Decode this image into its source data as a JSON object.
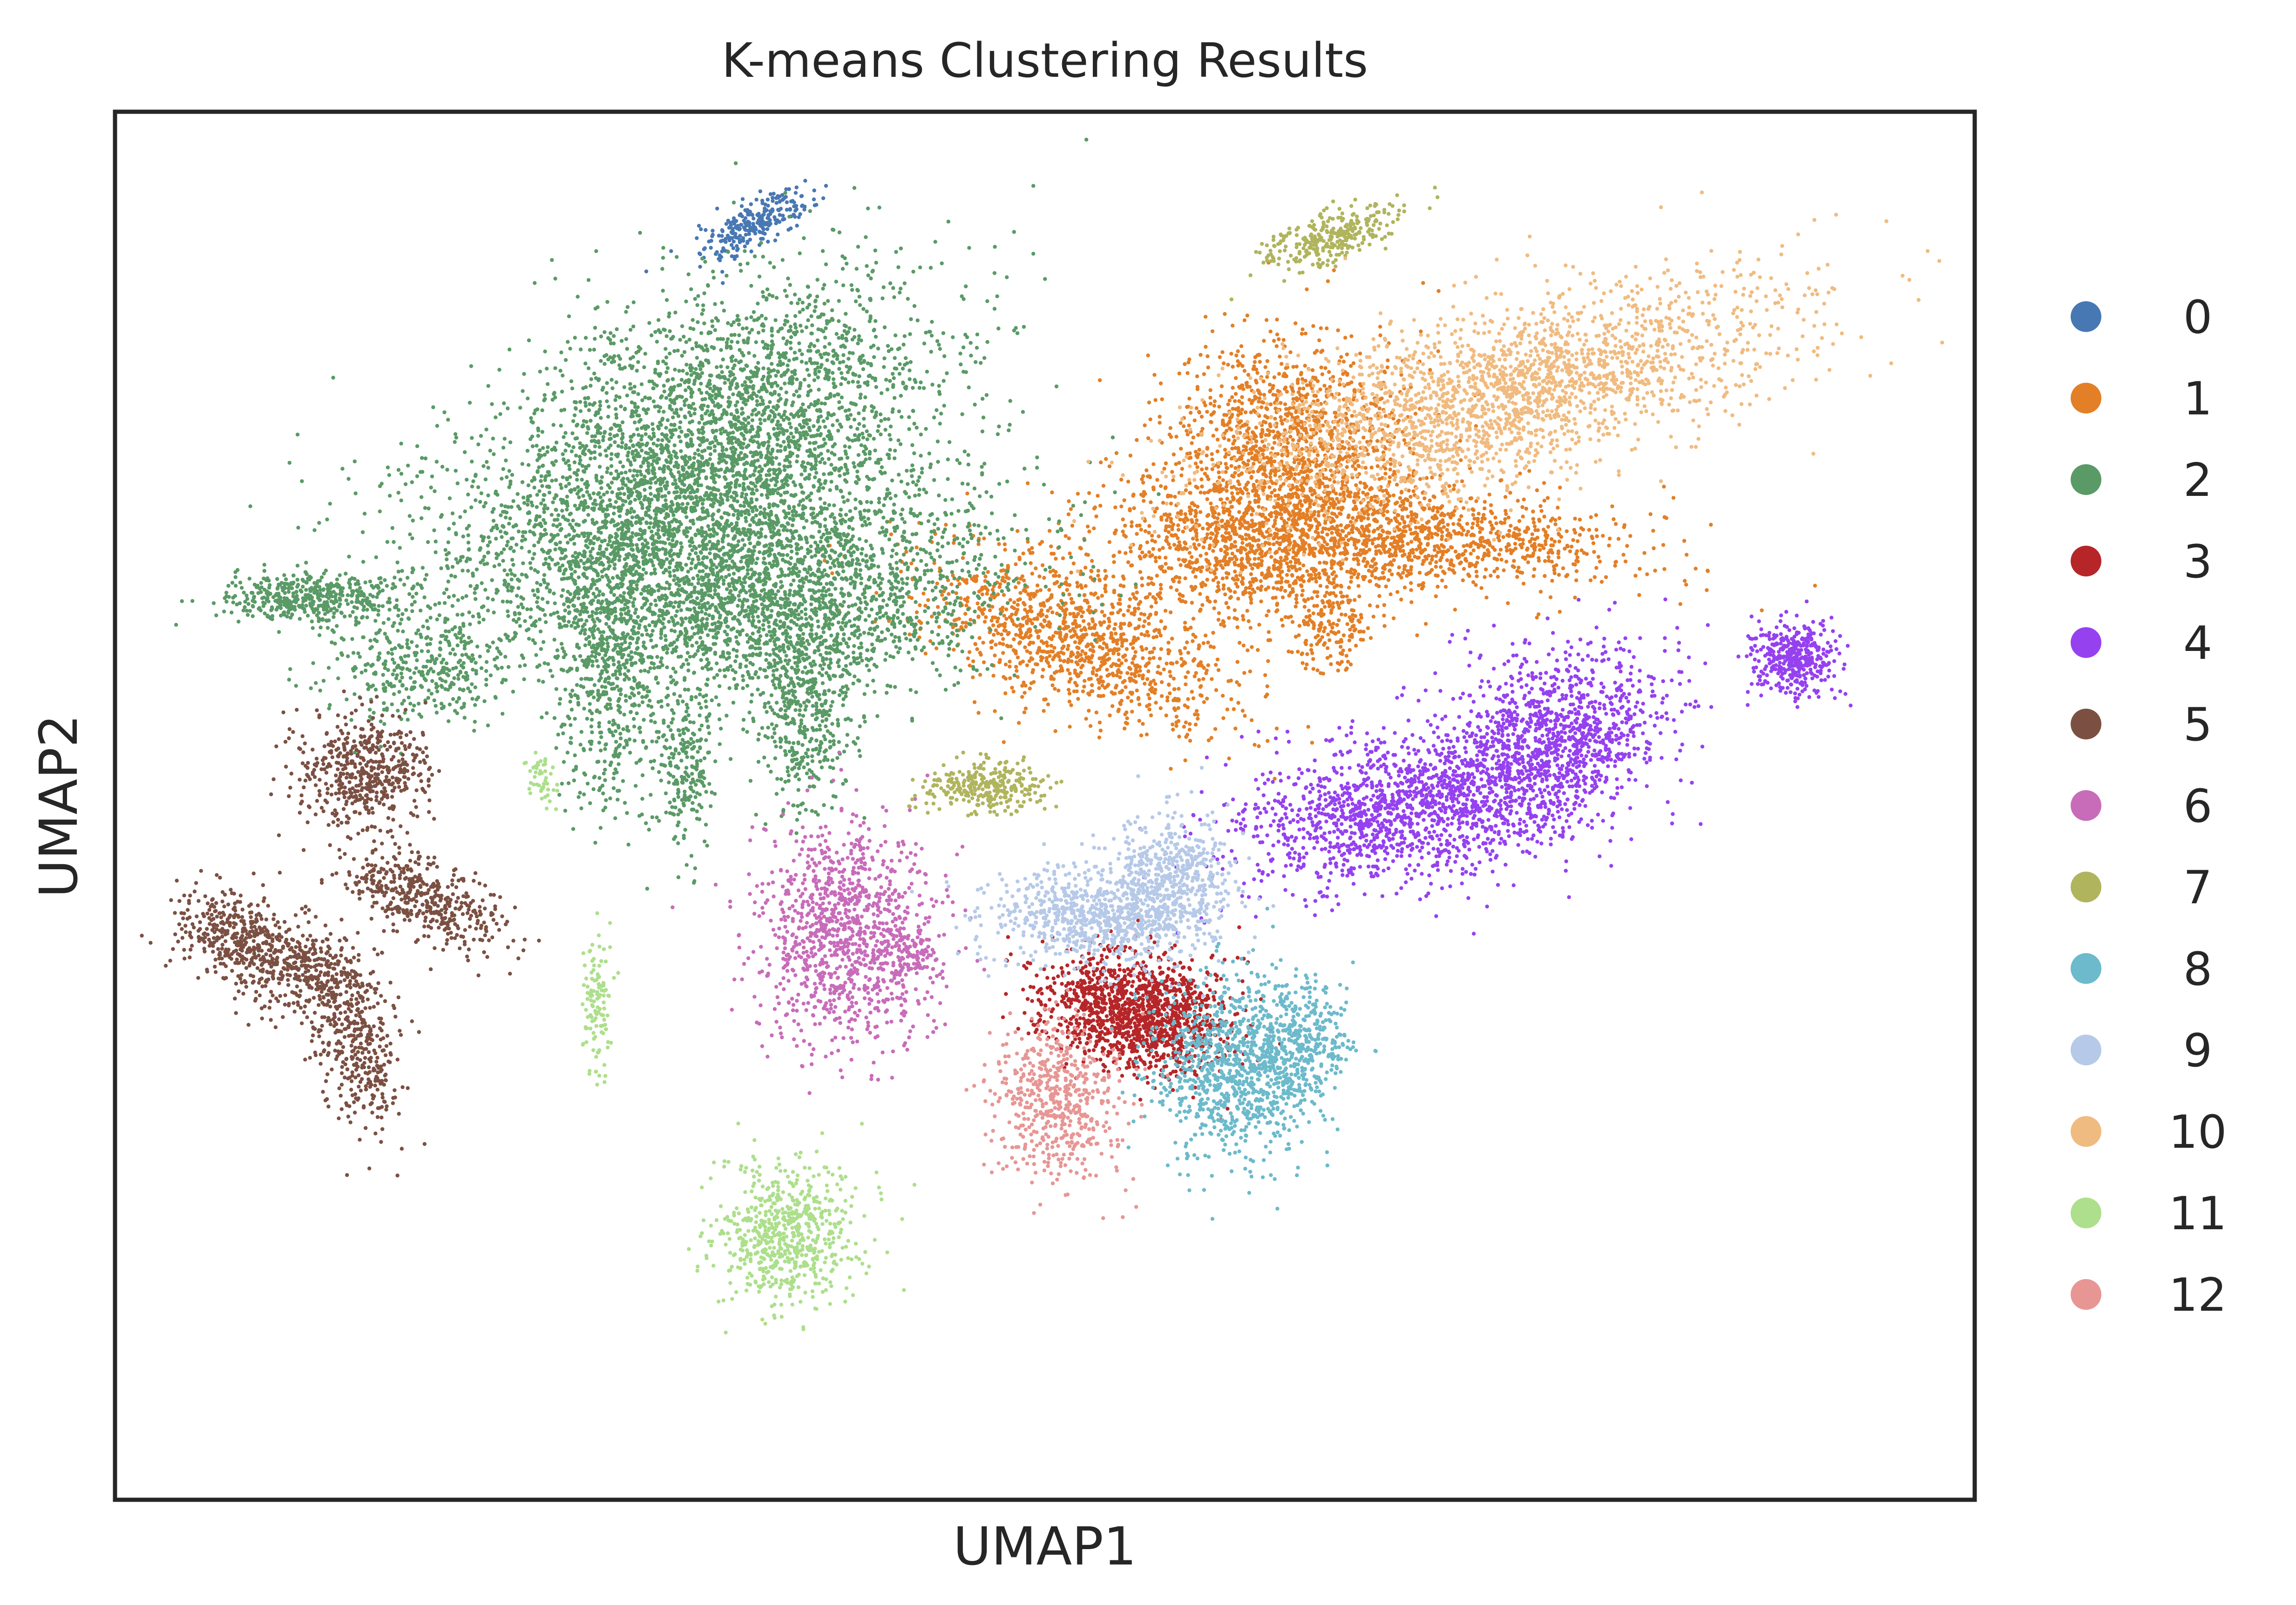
{
  "chart_data": {
    "type": "scatter",
    "title": "K-means Clustering Results",
    "xlabel": "UMAP1",
    "ylabel": "UMAP2",
    "xlim": [
      -14,
      17
    ],
    "ylim": [
      -9.6,
      13
    ],
    "axis_ticks": false,
    "grid": false,
    "legend_placement": "right, outside plot",
    "colors": {
      "0": "#4878b3",
      "1": "#e37f26",
      "2": "#5a9a66",
      "3": "#b62628",
      "4": "#9541f0",
      "5": "#7b5043",
      "6": "#c86cba",
      "7": "#b0b45d",
      "8": "#6cbacb",
      "9": "#b6c9e8",
      "10": "#f0bb80",
      "11": "#addf8c",
      "12": "#e79694"
    },
    "legend": {
      "labels": [
        "0",
        "1",
        "2",
        "3",
        "4",
        "5",
        "6",
        "7",
        "8",
        "9",
        "10",
        "11",
        "12"
      ]
    },
    "clusters": [
      {
        "label": "0",
        "blobs": [
          {
            "cx": -3.3,
            "cy": 11.2,
            "sx": 0.5,
            "sy": 0.18,
            "rot": 30,
            "n": 260
          }
        ]
      },
      {
        "label": "1",
        "blobs": [
          {
            "cx": 5.6,
            "cy": 7.6,
            "sx": 1.0,
            "sy": 0.9,
            "rot": 0,
            "n": 1300
          },
          {
            "cx": 5.0,
            "cy": 5.9,
            "sx": 1.4,
            "sy": 0.6,
            "rot": 0,
            "n": 1200
          },
          {
            "cx": 8.1,
            "cy": 6.1,
            "sx": 1.6,
            "sy": 0.4,
            "rot": -5,
            "n": 900
          },
          {
            "cx": 2.0,
            "cy": 4.4,
            "sx": 1.4,
            "sy": 0.55,
            "rot": -20,
            "n": 1100
          },
          {
            "cx": 6.2,
            "cy": 4.6,
            "sx": 0.35,
            "sy": 0.4,
            "rot": 0,
            "n": 150
          }
        ]
      },
      {
        "label": "2",
        "blobs": [
          {
            "cx": -3.9,
            "cy": 7.9,
            "sx": 1.9,
            "sy": 1.1,
            "rot": 20,
            "n": 2600
          },
          {
            "cx": -4.2,
            "cy": 6.0,
            "sx": 2.4,
            "sy": 0.9,
            "rot": 0,
            "n": 2600
          },
          {
            "cx": -3.2,
            "cy": 4.8,
            "sx": 1.8,
            "sy": 0.7,
            "rot": 0,
            "n": 1300
          },
          {
            "cx": -5.8,
            "cy": 3.8,
            "sx": 0.45,
            "sy": 1.1,
            "rot": 0,
            "n": 550
          },
          {
            "cx": -2.5,
            "cy": 3.3,
            "sx": 0.4,
            "sy": 0.9,
            "rot": 0,
            "n": 450
          },
          {
            "cx": -4.5,
            "cy": 2.4,
            "sx": 0.25,
            "sy": 0.7,
            "rot": 0,
            "n": 250
          },
          {
            "cx": -10.8,
            "cy": 5.1,
            "sx": 0.8,
            "sy": 0.2,
            "rot": 0,
            "n": 450
          },
          {
            "cx": -8.9,
            "cy": 4.0,
            "sx": 0.8,
            "sy": 0.5,
            "rot": 0,
            "n": 400
          }
        ]
      },
      {
        "label": "3",
        "blobs": [
          {
            "cx": 3.1,
            "cy": -1.7,
            "sx": 0.8,
            "sy": 0.45,
            "rot": -10,
            "n": 1400
          }
        ]
      },
      {
        "label": "4",
        "blobs": [
          {
            "cx": 10.0,
            "cy": 2.8,
            "sx": 1.0,
            "sy": 0.7,
            "rot": 25,
            "n": 1100
          },
          {
            "cx": 7.6,
            "cy": 1.7,
            "sx": 1.5,
            "sy": 0.6,
            "rot": 10,
            "n": 1500
          },
          {
            "cx": 14.0,
            "cy": 4.1,
            "sx": 0.35,
            "sy": 0.3,
            "rot": 0,
            "n": 400
          }
        ]
      },
      {
        "label": "5",
        "blobs": [
          {
            "cx": -9.9,
            "cy": 2.3,
            "sx": 0.55,
            "sy": 0.45,
            "rot": 0,
            "n": 500
          },
          {
            "cx": -8.9,
            "cy": 0.2,
            "sx": 0.75,
            "sy": 0.3,
            "rot": -25,
            "n": 450
          },
          {
            "cx": -11.9,
            "cy": -0.5,
            "sx": 0.6,
            "sy": 0.35,
            "rot": -25,
            "n": 450
          },
          {
            "cx": -10.0,
            "cy": -2.2,
            "sx": 0.35,
            "sy": 0.75,
            "rot": 15,
            "n": 400
          },
          {
            "cx": -10.8,
            "cy": -1.0,
            "sx": 0.5,
            "sy": 0.35,
            "rot": 0,
            "n": 250
          }
        ]
      },
      {
        "label": "6",
        "blobs": [
          {
            "cx": -1.8,
            "cy": -0.4,
            "sx": 0.75,
            "sy": 0.9,
            "rot": 0,
            "n": 1100
          },
          {
            "cx": -0.7,
            "cy": -0.7,
            "sx": 0.25,
            "sy": 0.2,
            "rot": 0,
            "n": 80
          }
        ]
      },
      {
        "label": "7",
        "blobs": [
          {
            "cx": 0.5,
            "cy": 2.0,
            "sx": 0.5,
            "sy": 0.22,
            "rot": 0,
            "n": 300
          },
          {
            "cx": 6.3,
            "cy": 11.0,
            "sx": 0.55,
            "sy": 0.2,
            "rot": 20,
            "n": 300
          }
        ]
      },
      {
        "label": "8",
        "blobs": [
          {
            "cx": 4.7,
            "cy": -2.6,
            "sx": 0.7,
            "sy": 0.7,
            "rot": 0,
            "n": 1000
          },
          {
            "cx": 5.8,
            "cy": -2.1,
            "sx": 0.4,
            "sy": 0.5,
            "rot": 0,
            "n": 300
          }
        ]
      },
      {
        "label": "9",
        "blobs": [
          {
            "cx": 2.4,
            "cy": -0.1,
            "sx": 0.9,
            "sy": 0.4,
            "rot": 0,
            "n": 800
          },
          {
            "cx": 3.6,
            "cy": 0.5,
            "sx": 0.5,
            "sy": 0.55,
            "rot": 0,
            "n": 500
          }
        ]
      },
      {
        "label": "10",
        "blobs": [
          {
            "cx": 9.1,
            "cy": 8.4,
            "sx": 2.4,
            "sy": 0.7,
            "rot": 15,
            "n": 2300
          }
        ]
      },
      {
        "label": "11",
        "blobs": [
          {
            "cx": -2.8,
            "cy": -5.3,
            "sx": 0.6,
            "sy": 0.55,
            "rot": 45,
            "n": 650
          },
          {
            "cx": -6.0,
            "cy": -1.6,
            "sx": 0.12,
            "sy": 0.6,
            "rot": 0,
            "n": 120
          },
          {
            "cx": -6.9,
            "cy": 2.1,
            "sx": 0.12,
            "sy": 0.2,
            "rot": 0,
            "n": 50
          }
        ]
      },
      {
        "label": "12",
        "blobs": [
          {
            "cx": 1.7,
            "cy": -3.1,
            "sx": 0.55,
            "sy": 0.65,
            "rot": 0,
            "n": 550
          }
        ]
      }
    ]
  }
}
